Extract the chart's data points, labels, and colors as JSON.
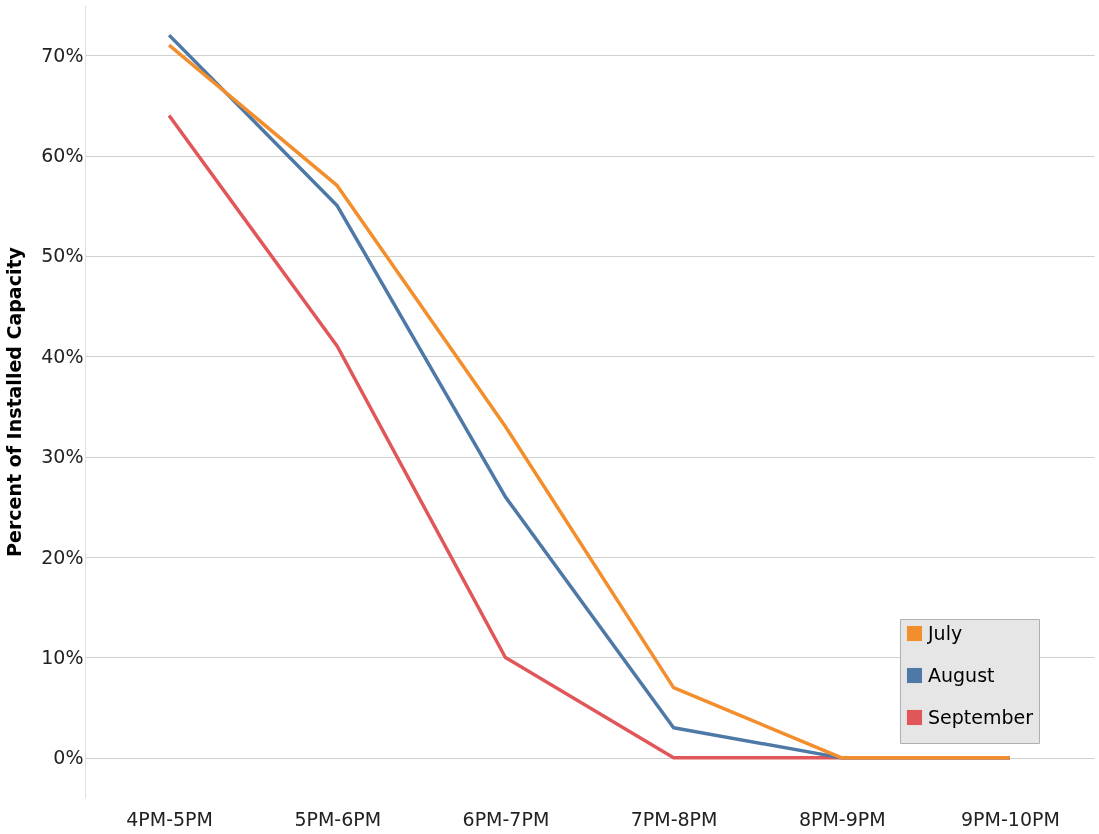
{
  "chart_data": {
    "type": "line",
    "ylabel": "Percent of Installed Capacity",
    "categories": [
      "4PM-5PM",
      "5PM-6PM",
      "6PM-7PM",
      "7PM-8PM",
      "8PM-9PM",
      "9PM-10PM"
    ],
    "series": [
      {
        "name": "July",
        "color": "#f28e2b",
        "values": [
          71,
          57,
          33,
          7,
          0,
          0
        ]
      },
      {
        "name": "August",
        "color": "#4e79a7",
        "values": [
          72,
          55,
          26,
          3,
          0,
          0
        ]
      },
      {
        "name": "September",
        "color": "#e15759",
        "values": [
          64,
          41,
          10,
          0,
          0,
          0
        ]
      }
    ],
    "ylim": [
      -4,
      75
    ],
    "yticks": [
      {
        "value": 0,
        "label": "0%"
      },
      {
        "value": 10,
        "label": "10%"
      },
      {
        "value": 20,
        "label": "20%"
      },
      {
        "value": 30,
        "label": "30%"
      },
      {
        "value": 40,
        "label": "40%"
      },
      {
        "value": 50,
        "label": "50%"
      },
      {
        "value": 60,
        "label": "60%"
      },
      {
        "value": 70,
        "label": "70%"
      }
    ],
    "grid": "y",
    "legend": "bottom right",
    "marker": "none",
    "line_style": "solid"
  }
}
